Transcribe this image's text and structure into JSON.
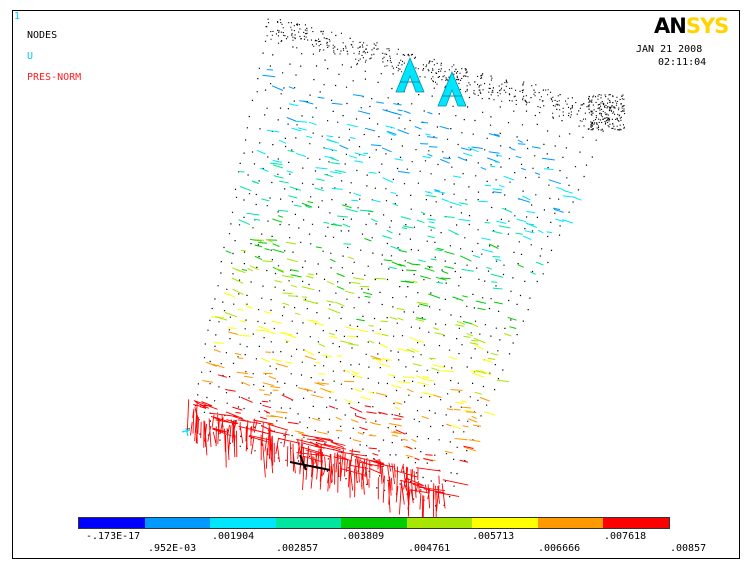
{
  "window": {
    "number": "1"
  },
  "legend": {
    "nodes": "NODES",
    "u": "U",
    "pres": "PRES-NORM"
  },
  "logo": {
    "an": "AN",
    "sys": "SYS"
  },
  "timestamp": {
    "date": "JAN 21 2008",
    "time": "02:11:04"
  },
  "colorbar": {
    "colors": [
      "#0000ff",
      "#0099ff",
      "#00e6ff",
      "#00e6a0",
      "#00cc00",
      "#a6e600",
      "#ffff00",
      "#ff9900",
      "#ff0000"
    ],
    "labels_bottom": [
      "-.173E-17",
      ".001904",
      ".003809",
      ".005713",
      ".007618"
    ],
    "labels_lower": [
      ".952E-03",
      ".002857",
      ".004761",
      ".006666",
      ".00857"
    ]
  },
  "colors": {
    "nodes": "#000000",
    "u": "#00e6ff",
    "pres": "#ff0000"
  }
}
